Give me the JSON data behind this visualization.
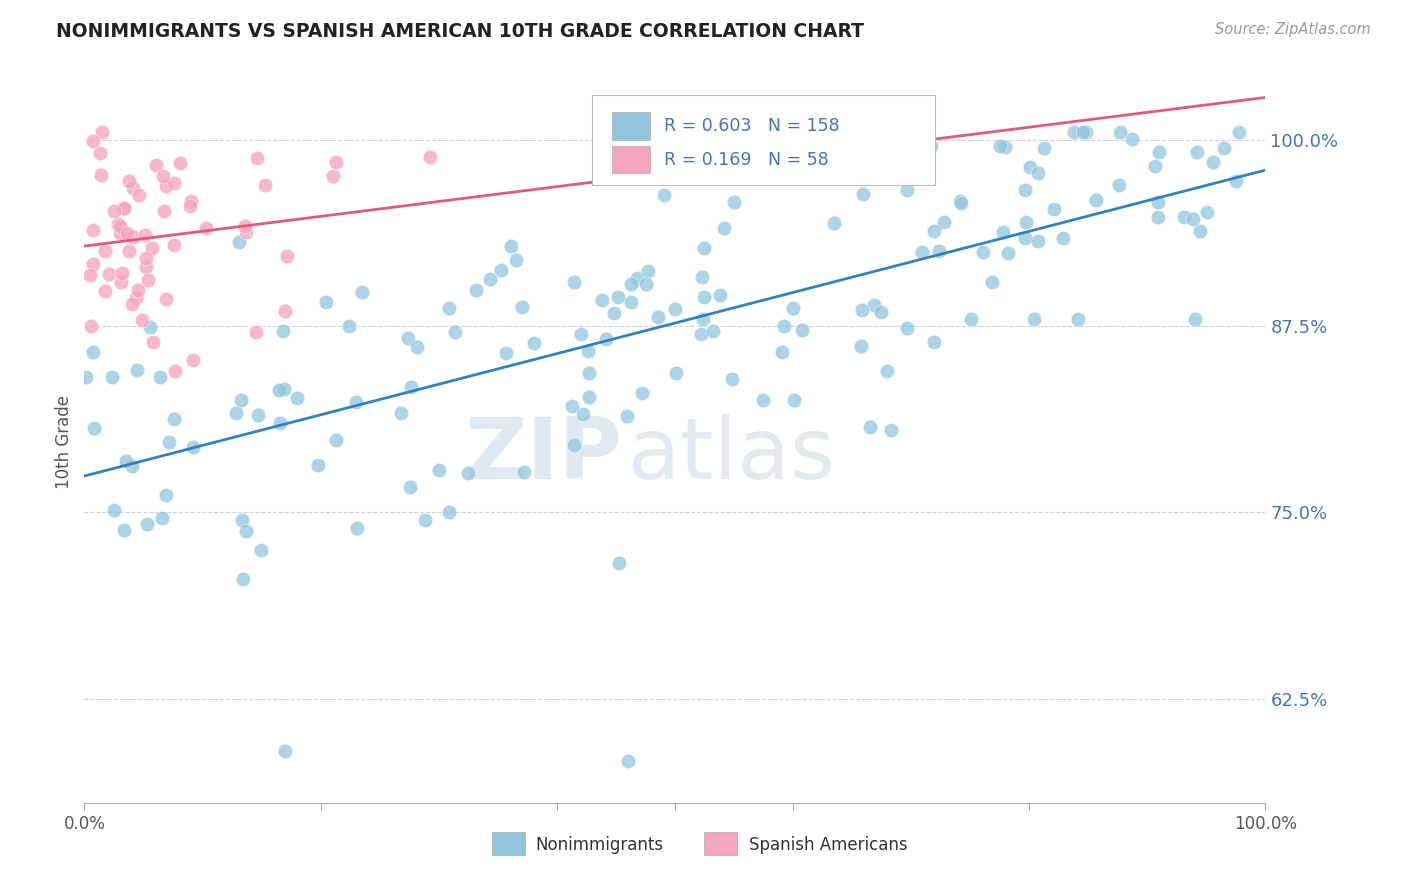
{
  "title": "NONIMMIGRANTS VS SPANISH AMERICAN 10TH GRADE CORRELATION CHART",
  "source": "Source: ZipAtlas.com",
  "ylabel": "10th Grade",
  "yticks": [
    0.625,
    0.75,
    0.875,
    1.0
  ],
  "ytick_labels": [
    "62.5%",
    "75.0%",
    "87.5%",
    "100.0%"
  ],
  "xtick_labels": [
    "0.0%",
    "100.0%"
  ],
  "xlim": [
    0.0,
    1.0
  ],
  "ylim": [
    0.555,
    1.04
  ],
  "blue_R": 0.603,
  "blue_N": 158,
  "pink_R": 0.169,
  "pink_N": 58,
  "blue_color": "#92c5de",
  "pink_color": "#f4a6bd",
  "blue_line_color": "#3182bd",
  "pink_line_color": "#e05a7a",
  "legend_blue_label": "Nonimmigrants",
  "legend_pink_label": "Spanish Americans",
  "watermark_zip": "ZIP",
  "watermark_atlas": "atlas",
  "background_color": "#ffffff",
  "grid_color": "#d0d0d0",
  "tick_label_color": "#4575b4",
  "title_color": "#222222",
  "source_color": "#999999",
  "ylabel_color": "#555555"
}
